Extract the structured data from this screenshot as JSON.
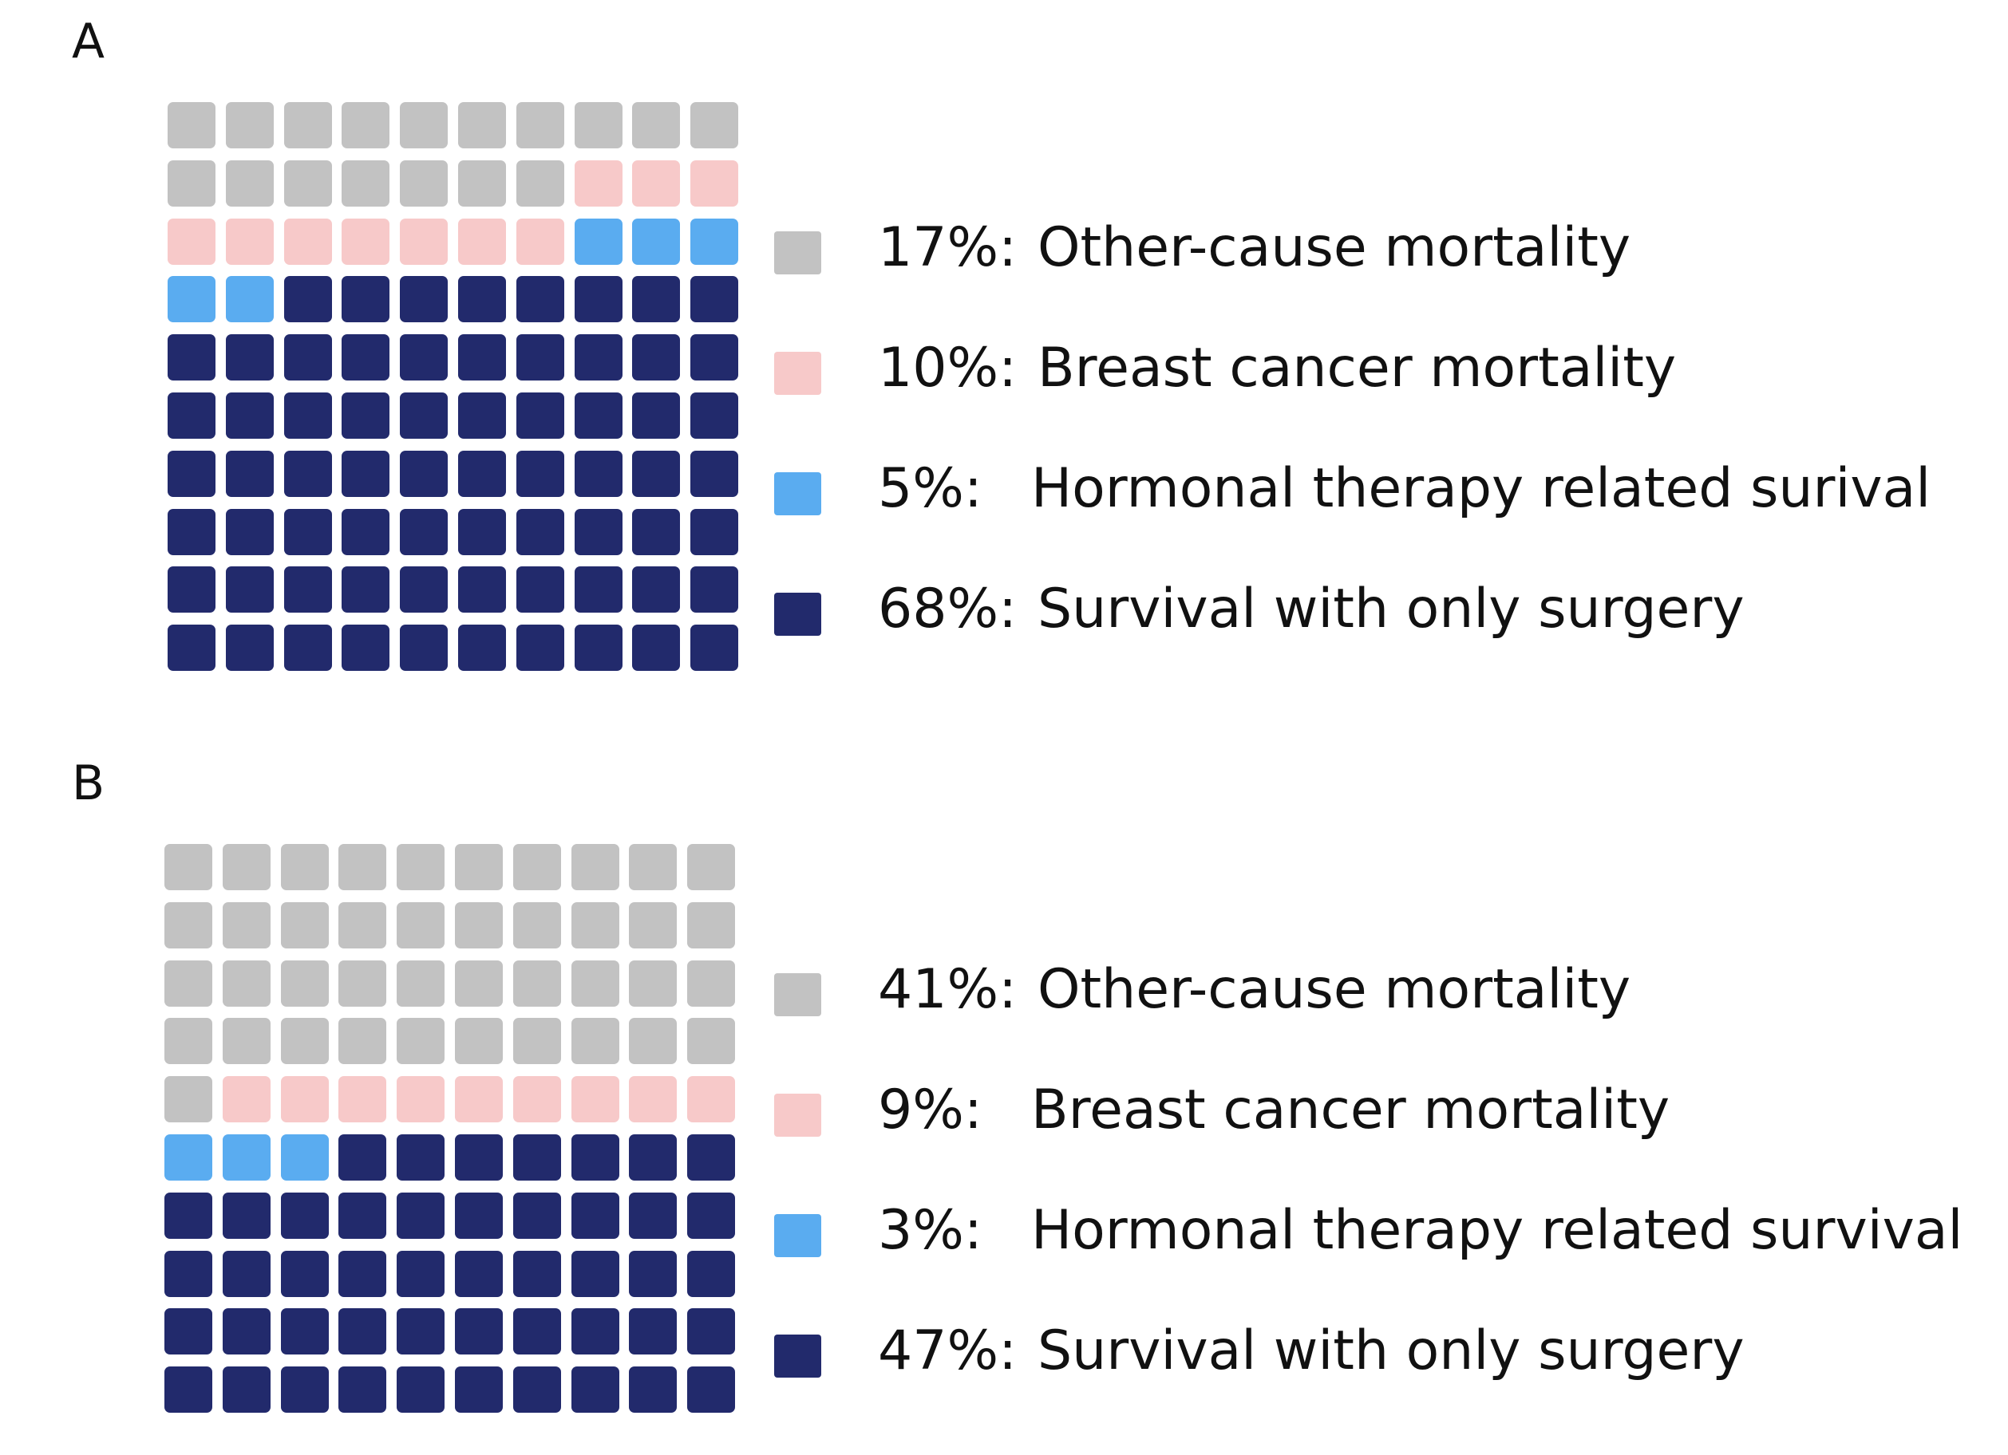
{
  "chart_data": [
    {
      "type": "waffle",
      "panel_label": "A",
      "grid": {
        "rows": 10,
        "cols": 10
      },
      "categories": [
        {
          "pct_label": "17%:",
          "name": "Other-cause mortality",
          "value": 17,
          "color": "#c2c2c2"
        },
        {
          "pct_label": "10%:",
          "name": "Breast cancer mortality",
          "value": 10,
          "color": "#f7c9c9"
        },
        {
          "pct_label": "5%:",
          "name": "Hormonal therapy related surival",
          "value": 5,
          "color": "#5aacf0"
        },
        {
          "pct_label": "68%:",
          "name": "Survival with only surgery",
          "value": 68,
          "color": "#222a6c"
        }
      ]
    },
    {
      "type": "waffle",
      "panel_label": "B",
      "grid": {
        "rows": 10,
        "cols": 10
      },
      "categories": [
        {
          "pct_label": "41%:",
          "name": "Other-cause mortality",
          "value": 41,
          "color": "#c2c2c2"
        },
        {
          "pct_label": "9%:",
          "name": "Breast cancer mortality",
          "value": 9,
          "color": "#f7c9c9"
        },
        {
          "pct_label": "3%:",
          "name": "Hormonal therapy related survival",
          "value": 3,
          "color": "#5aacf0"
        },
        {
          "pct_label": "47%:",
          "name": "Survival with only surgery",
          "value": 47,
          "color": "#222a6c"
        }
      ]
    }
  ]
}
